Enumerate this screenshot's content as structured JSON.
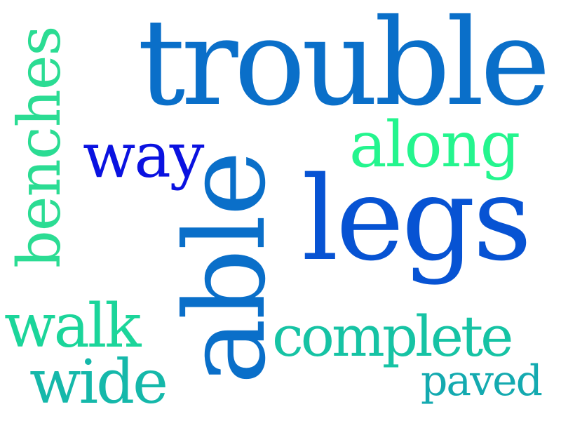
{
  "word_cloud": {
    "words": [
      {
        "text": "trouble",
        "color": "#0a6fc9"
      },
      {
        "text": "legs",
        "color": "#0753d3"
      },
      {
        "text": "able",
        "color": "#0a6fc9"
      },
      {
        "text": "way",
        "color": "#0a12e0"
      },
      {
        "text": "along",
        "color": "#24f58e"
      },
      {
        "text": "benches",
        "color": "#2bdc93"
      },
      {
        "text": "walk",
        "color": "#1bd59a"
      },
      {
        "text": "wide",
        "color": "#15b8aa"
      },
      {
        "text": "complete",
        "color": "#16c3a4"
      },
      {
        "text": "paved",
        "color": "#14aab0"
      }
    ]
  }
}
